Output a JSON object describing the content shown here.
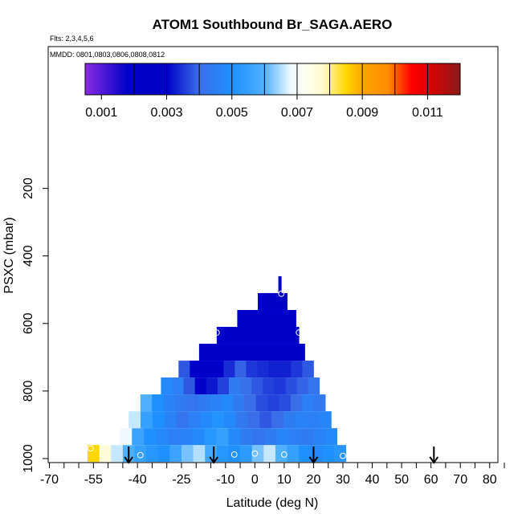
{
  "chart_data": {
    "type": "heatmap",
    "title": "ATOM1 Southbound Br_SAGA.AERO",
    "annotations": {
      "flights": "Flts: 2,3,4,5,6",
      "dates": "MMDD: 0801,0803,0806,0808,0812"
    },
    "xlabel": "Latitude (deg N)",
    "ylabel": "PSXC (mbar)",
    "xlim": [
      -70,
      85
    ],
    "ylim": [
      1000,
      0
    ],
    "x_ticks": [
      -70,
      -55,
      -40,
      -25,
      -10,
      0,
      10,
      20,
      30,
      40,
      50,
      60,
      70,
      80
    ],
    "x_tick_labels": [
      "-70",
      "-55",
      "-40",
      "-25",
      "-10",
      "0",
      "10",
      "20",
      "30",
      "40",
      "50",
      "60",
      "70",
      "80"
    ],
    "x_minor_ticks": [
      -65,
      -60,
      -50,
      -45,
      -35,
      -30,
      -20,
      -15,
      -5,
      5,
      15,
      25,
      35,
      45,
      55,
      65,
      75,
      85
    ],
    "y_ticks": [
      200,
      400,
      600,
      800,
      1000
    ],
    "y_tick_labels": [
      "200",
      "400",
      "600",
      "800",
      "1000"
    ],
    "colorbar": {
      "range": [
        0.0005,
        0.012
      ],
      "tick_values": [
        0.001,
        0.003,
        0.005,
        0.007,
        0.009,
        0.011
      ],
      "tick_labels": [
        "0.001",
        "0.003",
        "0.005",
        "0.007",
        "0.009",
        "0.011"
      ],
      "stops": [
        [
          0.0005,
          "#8b2be2"
        ],
        [
          0.0018,
          "#0000c8"
        ],
        [
          0.003,
          "#0000c8"
        ],
        [
          0.004,
          "#3a6ee8"
        ],
        [
          0.005,
          "#1e90ff"
        ],
        [
          0.006,
          "#4fb0ff"
        ],
        [
          0.0068,
          "#eefaff"
        ],
        [
          0.0073,
          "#fffff0"
        ],
        [
          0.0078,
          "#fffacd"
        ],
        [
          0.0085,
          "#ffd700"
        ],
        [
          0.009,
          "#ffa500"
        ],
        [
          0.0098,
          "#ff8c00"
        ],
        [
          0.0105,
          "#ff0000"
        ],
        [
          0.011,
          "#e00000"
        ],
        [
          0.012,
          "#8b1a1a"
        ]
      ]
    },
    "rows": [
      {
        "p_top": 960,
        "p_bot": 1010,
        "lat_start": -57,
        "lat_end": 31,
        "values": [
          0.0085,
          0.0076,
          0.0066,
          0.006,
          0.0055,
          0.0052,
          0.005,
          0.0056,
          0.0062,
          0.0065,
          0.0058,
          0.0052,
          0.005,
          0.0053,
          0.0062,
          0.0066,
          0.006,
          0.0055,
          0.005,
          0.0048,
          0.005,
          0.0052
        ]
      },
      {
        "p_top": 910,
        "p_bot": 960,
        "lat_start": -46,
        "lat_end": 28,
        "values": [
          0.0068,
          0.0056,
          0.005,
          0.0048,
          0.0045,
          0.0046,
          0.0048,
          0.0052,
          0.0055,
          0.0048,
          0.0044,
          0.0042,
          0.0044,
          0.0047,
          0.0045,
          0.0044,
          0.0046,
          0.0048
        ]
      },
      {
        "p_top": 860,
        "p_bot": 910,
        "lat_start": -43,
        "lat_end": 26,
        "values": [
          0.0066,
          0.0055,
          0.005,
          0.0046,
          0.0042,
          0.0045,
          0.0048,
          0.0051,
          0.0048,
          0.0043,
          0.004,
          0.0038,
          0.004,
          0.0044,
          0.0046,
          0.0045,
          0.0047
        ]
      },
      {
        "p_top": 810,
        "p_bot": 860,
        "lat_start": -39,
        "lat_end": 24,
        "values": [
          0.006,
          0.005,
          0.0046,
          0.0044,
          0.0042,
          0.0044,
          0.0046,
          0.0048,
          0.0044,
          0.004,
          0.0037,
          0.0036,
          0.0037,
          0.004,
          0.0045,
          0.0043
        ]
      },
      {
        "p_top": 760,
        "p_bot": 810,
        "lat_start": -32,
        "lat_end": 22,
        "values": [
          0.0048,
          0.0045,
          0.0038,
          0.003,
          0.0032,
          0.0036,
          0.0044,
          0.0041,
          0.0038,
          0.0036,
          0.0035,
          0.0037,
          0.0039,
          0.0042
        ]
      },
      {
        "p_top": 710,
        "p_bot": 760,
        "lat_start": -26,
        "lat_end": 20,
        "values": [
          0.0038,
          0.0028,
          0.0027,
          0.0029,
          0.0034,
          0.0039,
          0.0035,
          0.0034,
          0.0033,
          0.0033,
          0.0035,
          0.0038
        ]
      },
      {
        "p_top": 660,
        "p_bot": 710,
        "lat_start": -19,
        "lat_end": 17,
        "values": [
          0.0028,
          0.0026,
          0.0024,
          0.0023,
          0.0022,
          0.0022,
          0.0022,
          0.0023,
          0.0024
        ]
      },
      {
        "p_top": 610,
        "p_bot": 660,
        "lat_start": -13,
        "lat_end": 15,
        "values": [
          0.0022,
          0.0021,
          0.002,
          0.002,
          0.002,
          0.002,
          0.0021
        ]
      },
      {
        "p_top": 560,
        "p_bot": 610,
        "lat_start": -6,
        "lat_end": 14,
        "values": [
          0.0021,
          0.002,
          0.002,
          0.002,
          0.0021
        ]
      },
      {
        "p_top": 510,
        "p_bot": 560,
        "lat_start": 1,
        "lat_end": 11,
        "values": [
          0.002,
          0.002,
          0.002
        ]
      },
      {
        "p_top": 460,
        "p_bot": 510,
        "lat_start": 8,
        "lat_end": 9,
        "values": [
          0.002
        ]
      }
    ],
    "markers": [
      {
        "lat": -56,
        "p": 970
      },
      {
        "lat": -39,
        "p": 990
      },
      {
        "lat": -13,
        "p": 627
      },
      {
        "lat": -7,
        "p": 988
      },
      {
        "lat": 0,
        "p": 985
      },
      {
        "lat": 9,
        "p": 512
      },
      {
        "lat": 10,
        "p": 988
      },
      {
        "lat": 15,
        "p": 627
      },
      {
        "lat": 30,
        "p": 992
      }
    ],
    "arrows": [
      -43,
      -14,
      20,
      61
    ]
  }
}
